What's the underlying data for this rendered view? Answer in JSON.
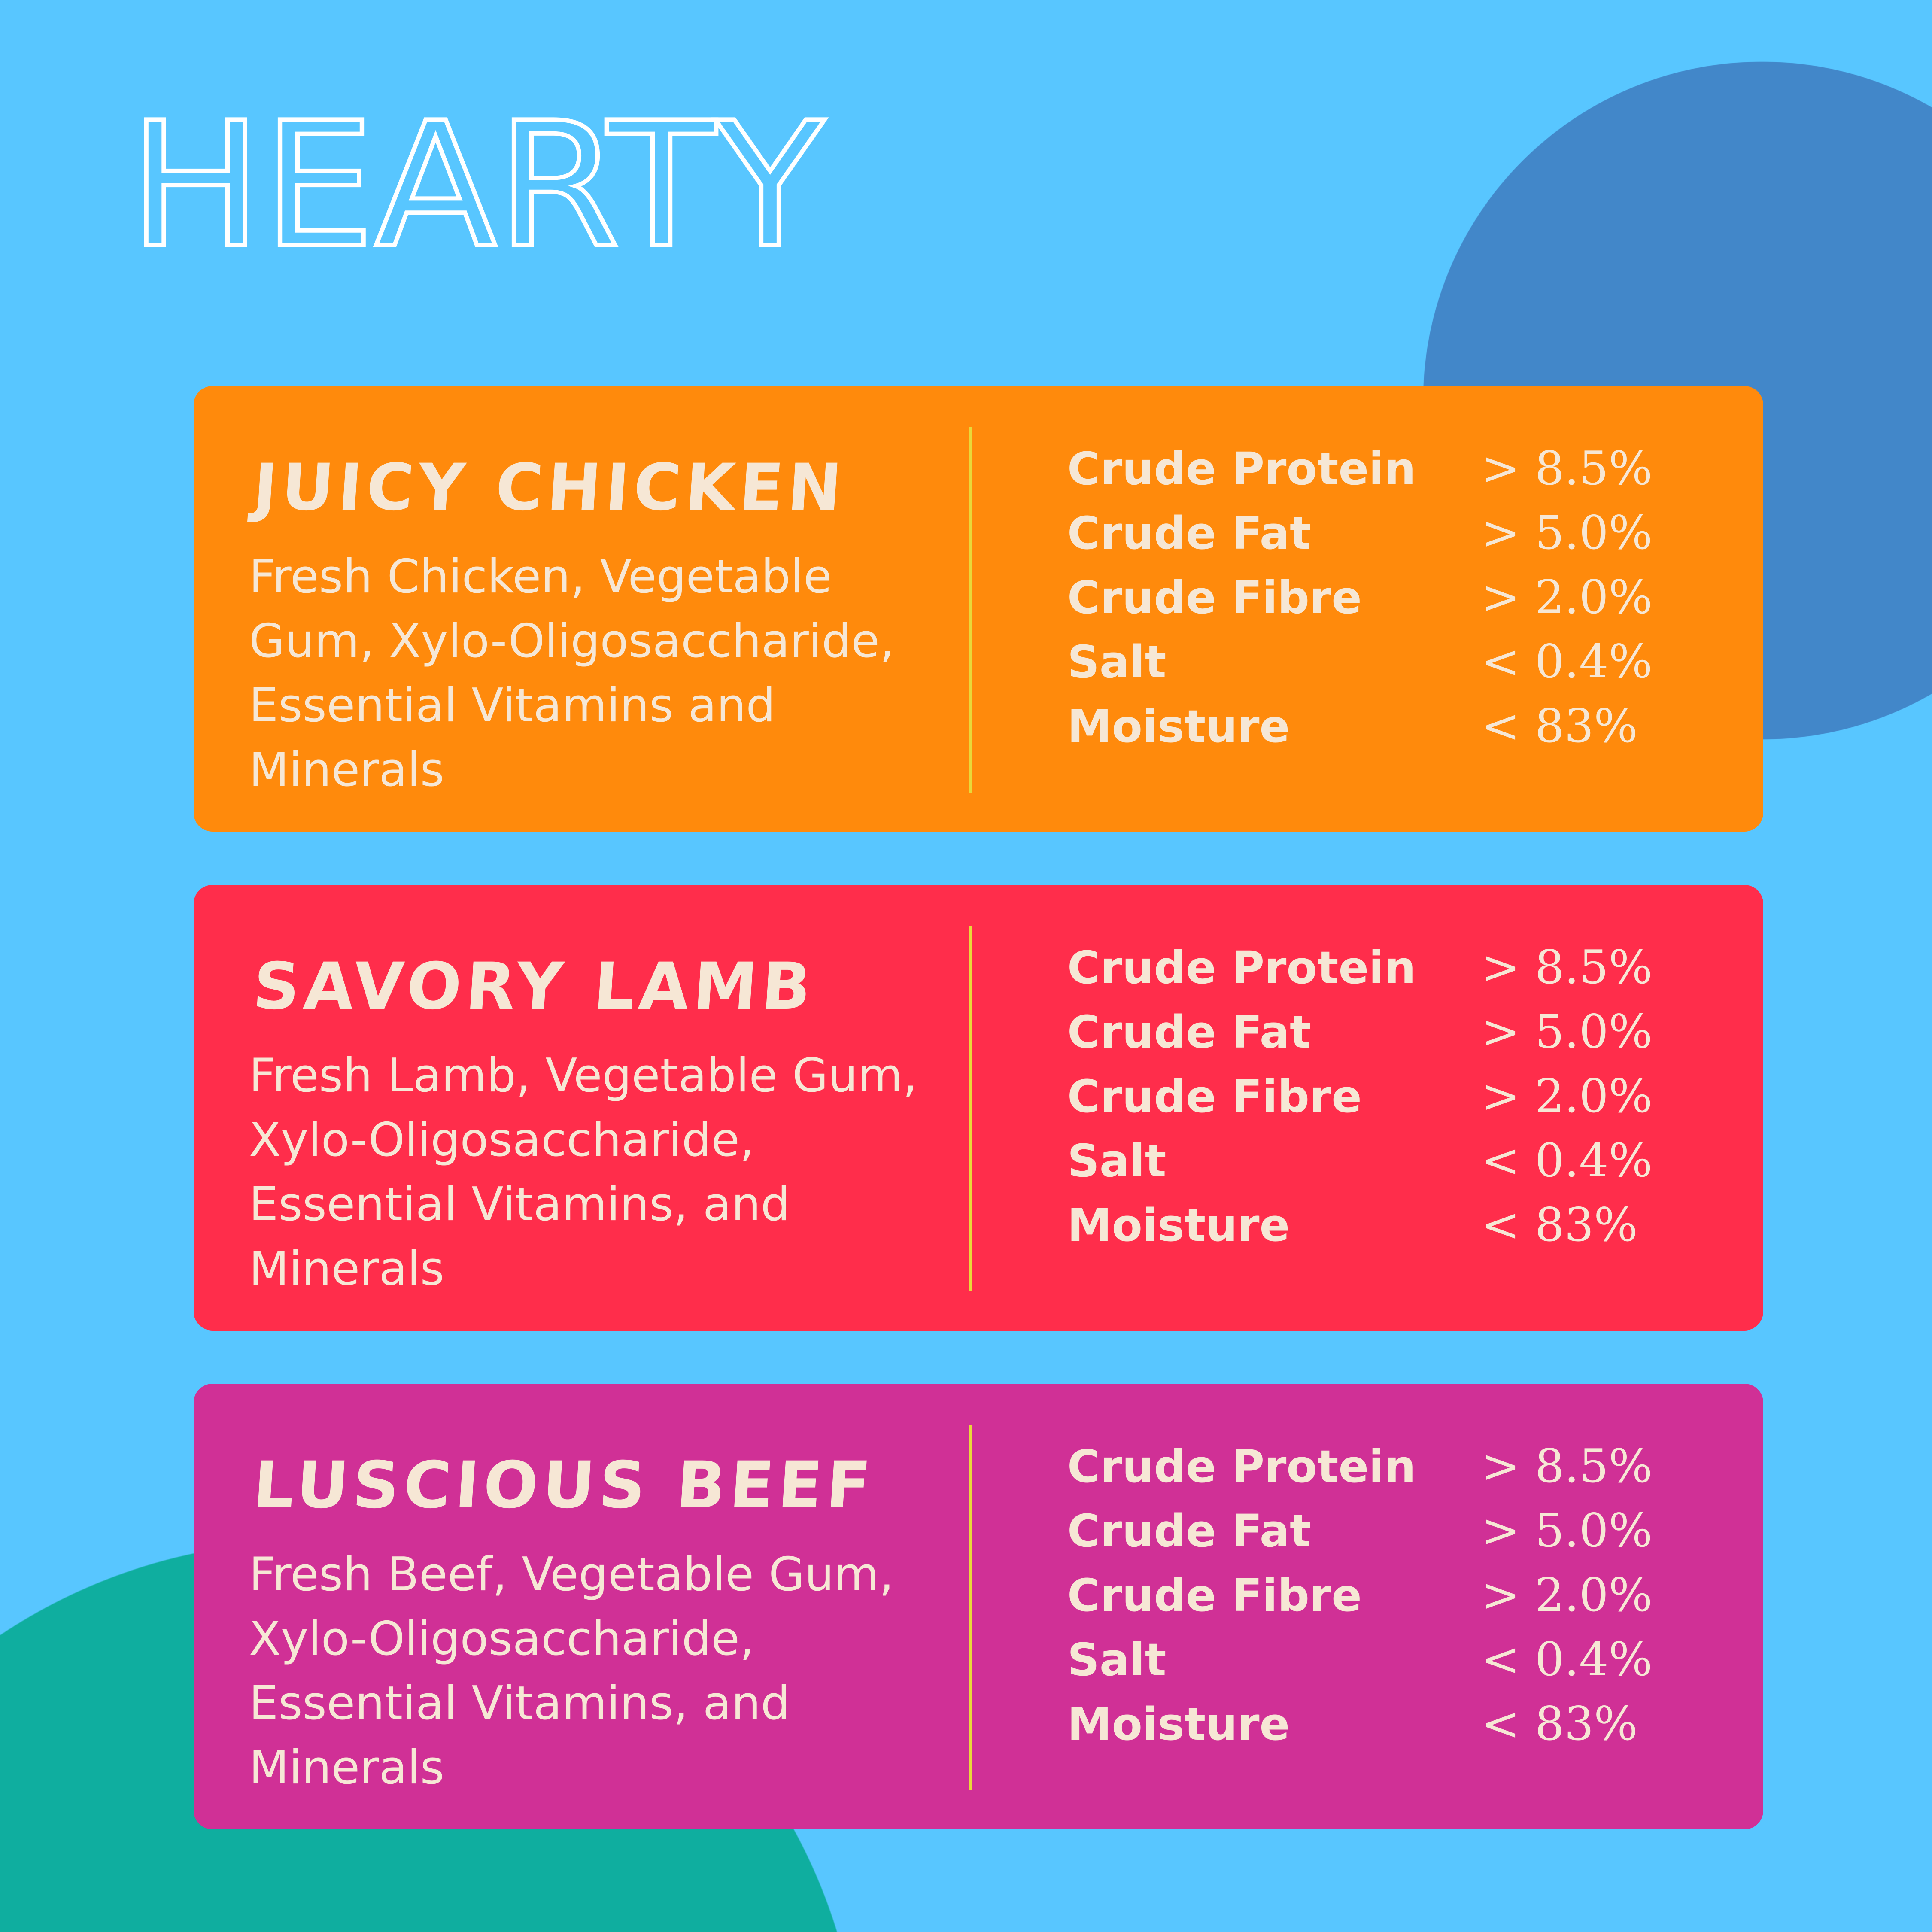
{
  "title": "HEARTY",
  "colors": {
    "background": "#58c6ff",
    "circle_blue": "#4287c9",
    "circle_teal": "#0fae9f",
    "text": "#f6e7d5",
    "divider": "#e8d83a"
  },
  "products": [
    {
      "name": "Juicy Chicken",
      "color": "#ff8a0c",
      "description": "Fresh Chicken, Vegetable Gum, Xylo-Oligosaccharide, Essential Vitamins and Minerals",
      "nutrients": [
        {
          "label": "Crude Protein",
          "value": "> 8.5%"
        },
        {
          "label": "Crude Fat",
          "value": "> 5.0%"
        },
        {
          "label": "Crude Fibre",
          "value": "> 2.0%"
        },
        {
          "label": "Salt",
          "value": "< 0.4%"
        },
        {
          "label": "Moisture",
          "value": "< 83%"
        }
      ]
    },
    {
      "name": "Savory Lamb",
      "color": "#ff2d4b",
      "description": "Fresh Lamb, Vegetable Gum, Xylo-Oligosaccharide, Essential Vitamins, and Minerals",
      "nutrients": [
        {
          "label": "Crude Protein",
          "value": "> 8.5%"
        },
        {
          "label": "Crude Fat",
          "value": "> 5.0%"
        },
        {
          "label": "Crude Fibre",
          "value": "> 2.0%"
        },
        {
          "label": "Salt",
          "value": "< 0.4%"
        },
        {
          "label": "Moisture",
          "value": "< 83%"
        }
      ]
    },
    {
      "name": "Luscious Beef",
      "color": "#d03096",
      "description": "Fresh Beef, Vegetable Gum, Xylo-Oligosaccharide, Essential Vitamins, and Minerals",
      "nutrients": [
        {
          "label": "Crude Protein",
          "value": "> 8.5%"
        },
        {
          "label": "Crude Fat",
          "value": "> 5.0%"
        },
        {
          "label": "Crude Fibre",
          "value": "> 2.0%"
        },
        {
          "label": "Salt",
          "value": "< 0.4%"
        },
        {
          "label": "Moisture",
          "value": "< 83%"
        }
      ]
    }
  ]
}
